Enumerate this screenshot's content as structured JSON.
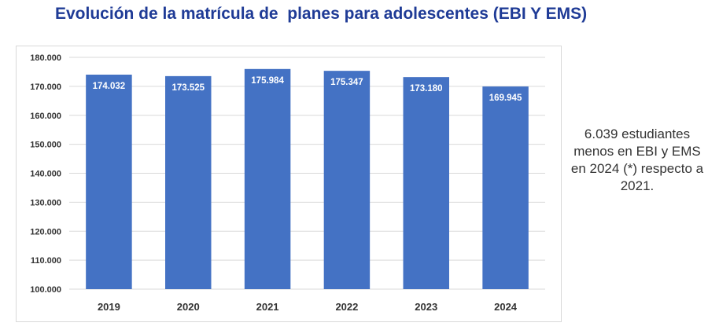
{
  "title": "Evolución de la matrícula de  planes para adolescentes (EBI Y EMS)",
  "side_note": "6.039 estudiantes menos en EBI y EMS en 2024 (*) respecto a 2021.",
  "colors": {
    "bar": "#4472c4",
    "title": "#1f3b96",
    "grid": "#d9d9d9"
  },
  "chart_data": {
    "type": "bar",
    "categories": [
      "2019",
      "2020",
      "2021",
      "2022",
      "2023",
      "2024"
    ],
    "values": [
      174032,
      173525,
      175984,
      175347,
      173180,
      169945
    ],
    "value_labels": [
      "174.032",
      "173.525",
      "175.984",
      "175.347",
      "173.180",
      "169.945"
    ],
    "y_ticks": [
      "100.000",
      "110.000",
      "120.000",
      "130.000",
      "140.000",
      "150.000",
      "160.000",
      "170.000",
      "180.000"
    ],
    "ylim": [
      100000,
      180000
    ],
    "xlabel": "",
    "ylabel": "",
    "grid": true
  }
}
